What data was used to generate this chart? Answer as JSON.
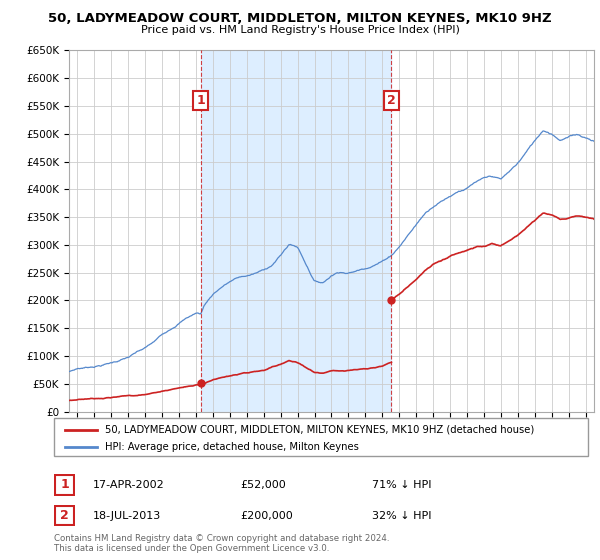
{
  "title": "50, LADYMEADOW COURT, MIDDLETON, MILTON KEYNES, MK10 9HZ",
  "subtitle": "Price paid vs. HM Land Registry's House Price Index (HPI)",
  "legend_line1": "50, LADYMEADOW COURT, MIDDLETON, MILTON KEYNES, MK10 9HZ (detached house)",
  "legend_line2": "HPI: Average price, detached house, Milton Keynes",
  "footer": "Contains HM Land Registry data © Crown copyright and database right 2024.\nThis data is licensed under the Open Government Licence v3.0.",
  "sale1_label": "1",
  "sale1_date": "17-APR-2002",
  "sale1_price": "£52,000",
  "sale1_hpi": "71% ↓ HPI",
  "sale1_year": 2002.29,
  "sale1_value": 52000,
  "sale2_label": "2",
  "sale2_date": "18-JUL-2013",
  "sale2_price": "£200,000",
  "sale2_hpi": "32% ↓ HPI",
  "sale2_year": 2013.54,
  "sale2_value": 200000,
  "hpi_color": "#5588cc",
  "price_color": "#cc2222",
  "vline_color": "#cc2222",
  "box_color": "#cc2222",
  "shade_color": "#ddeeff",
  "grid_color": "#cccccc",
  "bg_color": "#ffffff",
  "ylim": [
    0,
    650000
  ],
  "yticks": [
    0,
    50000,
    100000,
    150000,
    200000,
    250000,
    300000,
    350000,
    400000,
    450000,
    500000,
    550000,
    600000,
    650000
  ],
  "xlim": [
    1994.5,
    2025.5
  ],
  "hpi_control_points": [
    [
      1994.5,
      72000
    ],
    [
      1995.0,
      78000
    ],
    [
      1995.5,
      80000
    ],
    [
      1996.0,
      83000
    ],
    [
      1996.5,
      86000
    ],
    [
      1997.0,
      90000
    ],
    [
      1997.5,
      95000
    ],
    [
      1998.0,
      100000
    ],
    [
      1998.5,
      108000
    ],
    [
      1999.0,
      115000
    ],
    [
      1999.5,
      125000
    ],
    [
      2000.0,
      138000
    ],
    [
      2000.5,
      150000
    ],
    [
      2001.0,
      162000
    ],
    [
      2001.5,
      172000
    ],
    [
      2002.0,
      180000
    ],
    [
      2002.29,
      179000
    ],
    [
      2002.5,
      195000
    ],
    [
      2003.0,
      215000
    ],
    [
      2003.5,
      228000
    ],
    [
      2004.0,
      238000
    ],
    [
      2004.5,
      245000
    ],
    [
      2005.0,
      248000
    ],
    [
      2005.5,
      252000
    ],
    [
      2006.0,
      258000
    ],
    [
      2006.5,
      268000
    ],
    [
      2007.0,
      285000
    ],
    [
      2007.5,
      305000
    ],
    [
      2008.0,
      300000
    ],
    [
      2008.5,
      270000
    ],
    [
      2009.0,
      240000
    ],
    [
      2009.5,
      238000
    ],
    [
      2010.0,
      252000
    ],
    [
      2010.5,
      260000
    ],
    [
      2011.0,
      258000
    ],
    [
      2011.5,
      262000
    ],
    [
      2012.0,
      268000
    ],
    [
      2012.5,
      275000
    ],
    [
      2013.0,
      282000
    ],
    [
      2013.54,
      294000
    ],
    [
      2014.0,
      310000
    ],
    [
      2014.5,
      330000
    ],
    [
      2015.0,
      350000
    ],
    [
      2015.5,
      370000
    ],
    [
      2016.0,
      385000
    ],
    [
      2016.5,
      395000
    ],
    [
      2017.0,
      405000
    ],
    [
      2017.5,
      415000
    ],
    [
      2018.0,
      420000
    ],
    [
      2018.5,
      430000
    ],
    [
      2019.0,
      435000
    ],
    [
      2019.5,
      438000
    ],
    [
      2020.0,
      432000
    ],
    [
      2020.5,
      445000
    ],
    [
      2021.0,
      460000
    ],
    [
      2021.5,
      480000
    ],
    [
      2022.0,
      500000
    ],
    [
      2022.5,
      520000
    ],
    [
      2023.0,
      515000
    ],
    [
      2023.5,
      505000
    ],
    [
      2024.0,
      510000
    ],
    [
      2024.5,
      515000
    ],
    [
      2025.0,
      510000
    ],
    [
      2025.5,
      505000
    ]
  ],
  "price_control_points_seg1": [
    [
      1994.5,
      20000
    ],
    [
      1995.0,
      22000
    ],
    [
      1997.0,
      28000
    ],
    [
      1999.0,
      33000
    ],
    [
      2001.0,
      45000
    ],
    [
      2002.29,
      52000
    ],
    [
      2003.0,
      60000
    ],
    [
      2004.0,
      66000
    ],
    [
      2005.0,
      69000
    ],
    [
      2006.0,
      72000
    ],
    [
      2007.0,
      83000
    ],
    [
      2007.5,
      90000
    ],
    [
      2008.0,
      87000
    ],
    [
      2008.5,
      78000
    ],
    [
      2009.0,
      70000
    ],
    [
      2009.5,
      69000
    ],
    [
      2010.0,
      73000
    ],
    [
      2011.0,
      75000
    ],
    [
      2012.0,
      77000
    ],
    [
      2012.5,
      79000
    ],
    [
      2013.0,
      81000
    ],
    [
      2013.54,
      88000
    ]
  ],
  "price_control_points_seg2": [
    [
      2013.54,
      200000
    ],
    [
      2014.0,
      211000
    ],
    [
      2014.5,
      225000
    ],
    [
      2015.0,
      238000
    ],
    [
      2015.5,
      252000
    ],
    [
      2016.0,
      263000
    ],
    [
      2016.5,
      270000
    ],
    [
      2017.0,
      277000
    ],
    [
      2017.5,
      283000
    ],
    [
      2018.0,
      287000
    ],
    [
      2018.5,
      293000
    ],
    [
      2019.0,
      297000
    ],
    [
      2019.5,
      299000
    ],
    [
      2020.0,
      295000
    ],
    [
      2020.5,
      304000
    ],
    [
      2021.0,
      314000
    ],
    [
      2021.5,
      328000
    ],
    [
      2022.0,
      341000
    ],
    [
      2022.5,
      355000
    ],
    [
      2023.0,
      352000
    ],
    [
      2023.5,
      345000
    ],
    [
      2024.0,
      348000
    ],
    [
      2024.5,
      351000
    ],
    [
      2025.0,
      348000
    ],
    [
      2025.5,
      346000
    ]
  ]
}
